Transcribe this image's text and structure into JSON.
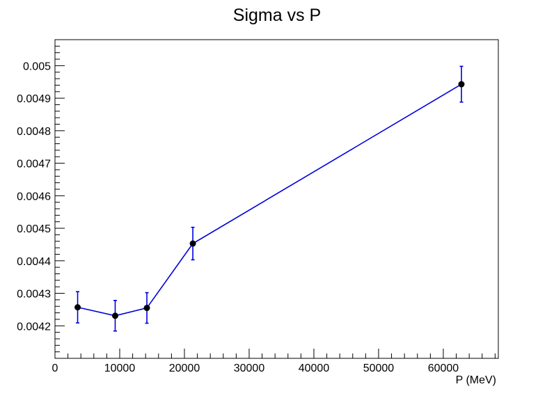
{
  "chart_data": {
    "type": "line",
    "title": "Sigma vs P",
    "xlabel": "P (MeV)",
    "ylabel": "",
    "xlim": [
      0,
      68500
    ],
    "ylim": [
      0.0041,
      0.00508
    ],
    "x_ticks": [
      0,
      10000,
      20000,
      30000,
      40000,
      50000,
      60000
    ],
    "x_tick_labels": [
      "0",
      "10000",
      "20000",
      "30000",
      "40000",
      "50000",
      "60000"
    ],
    "y_ticks": [
      0.0042,
      0.0043,
      0.0044,
      0.0045,
      0.0046,
      0.0047,
      0.0048,
      0.0049,
      0.005
    ],
    "y_tick_labels": [
      "0.0042",
      "0.0043",
      "0.0044",
      "0.0045",
      "0.0046",
      "0.0047",
      "0.0048",
      "0.0049",
      "0.005"
    ],
    "grid": false,
    "legend": "none",
    "series": [
      {
        "x": [
          3500,
          9300,
          14200,
          21300,
          62800
        ],
        "y": [
          0.004257,
          0.004231,
          0.004255,
          0.004453,
          0.004943
        ],
        "y_err": [
          4.8e-05,
          4.7e-05,
          4.7e-05,
          5e-05,
          5.5e-05
        ],
        "line_color": "#0000dd",
        "marker_color": "#000000",
        "error_color": "#0000dd"
      }
    ]
  }
}
